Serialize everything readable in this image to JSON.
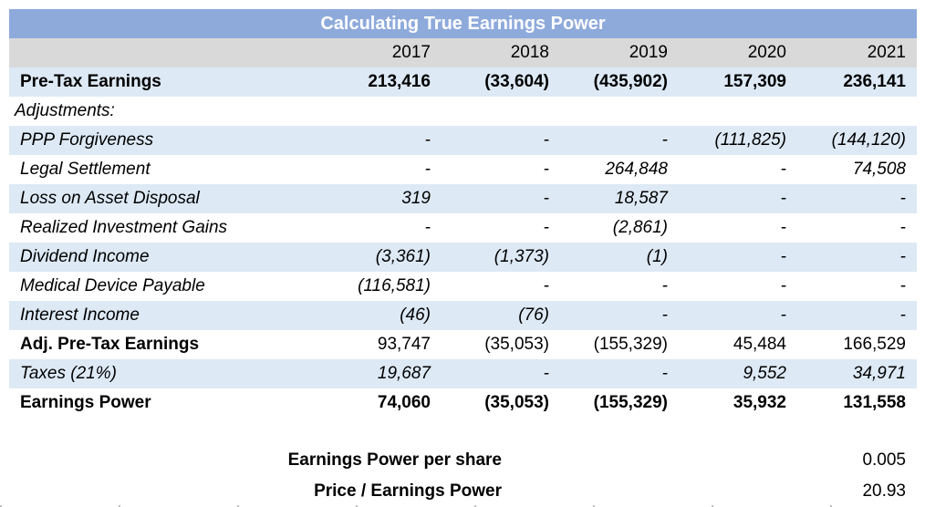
{
  "title": "Calculating True Earnings Power",
  "years": [
    "2017",
    "2018",
    "2019",
    "2020",
    "2021"
  ],
  "rows": [
    {
      "label": "Pre-Tax Earnings",
      "values": [
        "213,416",
        "(33,604)",
        "(435,902)",
        "157,309",
        "236,141"
      ]
    },
    {
      "label": "Adjustments:",
      "values": [
        "",
        "",
        "",
        "",
        ""
      ]
    },
    {
      "label": "PPP Forgiveness",
      "values": [
        "-",
        "-",
        "-",
        "(111,825)",
        "(144,120)"
      ]
    },
    {
      "label": "Legal Settlement",
      "values": [
        "-",
        "-",
        "264,848",
        "-",
        "74,508"
      ]
    },
    {
      "label": "Loss on Asset Disposal",
      "values": [
        "319",
        "-",
        "18,587",
        "-",
        "-"
      ]
    },
    {
      "label": "Realized Investment Gains",
      "values": [
        "-",
        "-",
        "(2,861)",
        "-",
        "-"
      ]
    },
    {
      "label": "Dividend Income",
      "values": [
        "(3,361)",
        "(1,373)",
        "(1)",
        "-",
        "-"
      ]
    },
    {
      "label": "Medical Device Payable",
      "values": [
        "(116,581)",
        "-",
        "-",
        "-",
        "-"
      ]
    },
    {
      "label": "Interest Income",
      "values": [
        "(46)",
        "(76)",
        "-",
        "-",
        "-"
      ]
    },
    {
      "label": "Adj. Pre-Tax Earnings",
      "values": [
        "93,747",
        "(35,053)",
        "(155,329)",
        "45,484",
        "166,529"
      ]
    },
    {
      "label": "Taxes (21%)",
      "values": [
        "19,687",
        "-",
        "-",
        "9,552",
        "34,971"
      ]
    },
    {
      "label": "Earnings Power",
      "values": [
        "74,060",
        "(35,053)",
        "(155,329)",
        "35,932",
        "131,558"
      ]
    }
  ],
  "summary": [
    {
      "label": "Earnings Power per share",
      "value": "0.005"
    },
    {
      "label": "Price / Earnings Power",
      "value": "20.93"
    }
  ],
  "colors": {
    "title_bg": "#8eaadb",
    "header_bg": "#d9d9d9",
    "band_bg": "#dde9f5"
  }
}
